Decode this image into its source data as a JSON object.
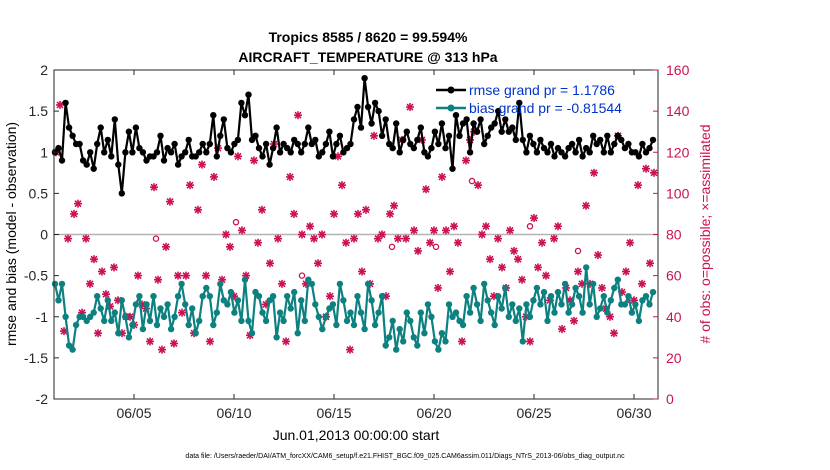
{
  "chart_data": {
    "type": "line",
    "title_line1": "Tropics 8585 / 8620 = 99.594%",
    "title_line2": "AIRCRAFT_TEMPERATURE @ 313 hPa",
    "xlabel": "Jun.01,2013 00:00:00 start",
    "ylabel_left": "rmse and bias (model - observation)",
    "ylabel_right": "# of obs: o=possible; ×=assimilated",
    "footnote": "data file: /Users/raeder/DAI/ATM_forcXX/CAM6_setup/f.e21.FHIST_BGC.f09_025.CAM6assim.011/Diags_NTrS_2013-06/obs_diag_output.nc",
    "xlim": [
      1.0,
      31.2
    ],
    "ylim_left": [
      -2,
      2
    ],
    "ylim_right": [
      0,
      160
    ],
    "xtick_values": [
      5,
      10,
      15,
      20,
      25,
      30
    ],
    "xtick_labels": [
      "06/05",
      "06/10",
      "06/15",
      "06/20",
      "06/25",
      "06/30"
    ],
    "ytick_left": [
      "2",
      "1.5",
      "1",
      "0.5",
      "0",
      "-0.5",
      "-1",
      "-1.5",
      "-2"
    ],
    "ytick_left_values": [
      2,
      1.5,
      1,
      0.5,
      0,
      -0.5,
      -1,
      -1.5,
      -2
    ],
    "ytick_right": [
      "160",
      "140",
      "120",
      "100",
      "80",
      "60",
      "40",
      "20",
      "0"
    ],
    "ytick_right_values": [
      160,
      140,
      120,
      100,
      80,
      60,
      40,
      20,
      0
    ],
    "zero_line": 0,
    "colors": {
      "rmse": "#000000",
      "bias": "#0d8080",
      "obs": "#cc1155",
      "legend_text": "#0033cc",
      "zero_line": "#b3b3b3"
    },
    "series": [
      {
        "name": "rmse grand pr = 1.1786",
        "values": [
          1.0,
          1.05,
          0.9,
          1.6,
          1.3,
          1.2,
          1.1,
          1.1,
          0.9,
          0.85,
          1.0,
          0.8,
          1.1,
          1.3,
          1.0,
          1.15,
          0.95,
          1.4,
          0.85,
          0.5,
          1.0,
          1.25,
          1.0,
          1.3,
          1.05,
          1.0,
          0.9,
          0.95,
          0.95,
          1.0,
          1.2,
          0.9,
          1.05,
          1.0,
          1.1,
          0.85,
          0.95,
          1.0,
          1.15,
          0.95,
          0.95,
          1.0,
          1.1,
          1.0,
          1.1,
          1.45,
          0.95,
          1.2,
          1.4,
          1.05,
          1.0,
          1.1,
          1.15,
          1.6,
          1.45,
          1.7,
          1.15,
          1.2,
          1.05,
          0.95,
          1.1,
          0.85,
          1.05,
          1.3,
          1.0,
          1.1,
          1.05,
          1.0,
          1.15,
          1.1,
          1.0,
          1.1,
          1.3,
          1.1,
          1.15,
          0.95,
          1.0,
          1.1,
          1.25,
          0.95,
          1.1,
          1.2,
          1.0,
          1.05,
          1.1,
          1.4,
          1.55,
          1.3,
          1.9,
          1.55,
          1.35,
          1.6,
          1.5,
          1.2,
          1.4,
          1.1,
          1.05,
          1.35,
          1.0,
          1.15,
          1.25,
          1.1,
          1.05,
          1.15,
          1.3,
          1.0,
          0.95,
          1.05,
          1.25,
          1.1,
          1.35,
          1.05,
          1.2,
          0.8,
          1.45,
          1.2,
          1.35,
          1.4,
          1.0,
          1.35,
          1.25,
          1.4,
          1.1,
          1.2,
          1.3,
          1.35,
          1.5,
          1.25,
          1.4,
          1.25,
          1.3,
          1.15,
          1.6,
          1.15,
          1.0,
          1.2,
          1.1,
          1.0,
          1.15,
          1.05,
          1.0,
          1.1,
          0.95,
          1.05,
          1.0,
          0.95,
          1.05,
          1.1,
          1.0,
          1.15,
          0.95,
          1.05,
          1.0,
          1.2,
          1.1,
          1.15,
          1.0,
          1.2,
          1.0,
          1.1,
          1.2,
          1.15,
          1.05,
          1.1,
          1.0,
          1.0,
          0.95,
          1.1,
          1.0,
          1.05,
          1.15
        ]
      },
      {
        "name": "bias grand pr = -0.81544",
        "values": [
          -0.6,
          -0.8,
          -0.6,
          -1.0,
          -1.35,
          -1.4,
          -1.1,
          -1.0,
          -1.0,
          -1.05,
          -1.0,
          -0.95,
          -0.75,
          -0.9,
          -1.05,
          -0.8,
          -1.05,
          -0.95,
          -1.2,
          -0.8,
          -1.0,
          -1.25,
          -1.1,
          -0.85,
          -0.75,
          -1.15,
          -0.85,
          -1.05,
          -0.75,
          -1.1,
          -0.9,
          -1.0,
          -0.85,
          -1.15,
          -1.0,
          -0.75,
          -0.6,
          -0.85,
          -1.1,
          -0.9,
          -1.2,
          -1.05,
          -0.75,
          -0.65,
          -0.75,
          -1.1,
          -0.95,
          -0.6,
          -0.8,
          -0.85,
          -0.7,
          -0.95,
          -0.8,
          -1.05,
          -0.55,
          -1.05,
          -1.2,
          -0.7,
          -0.75,
          -0.95,
          -1.05,
          -0.8,
          -0.75,
          -1.25,
          -0.95,
          -1.05,
          -0.75,
          -0.9,
          -0.7,
          -1.2,
          -0.8,
          -1.05,
          -0.55,
          -0.6,
          -0.85,
          -1.0,
          -1.15,
          -1.0,
          -0.9,
          -0.85,
          -1.1,
          -0.6,
          -0.8,
          -1.05,
          -0.95,
          -1.1,
          -0.75,
          -0.95,
          -1.15,
          -0.6,
          -0.8,
          -1.1,
          -0.95,
          -0.75,
          -1.35,
          -1.25,
          -1.05,
          -1.4,
          -1.15,
          -1.3,
          -0.95,
          -1.05,
          -1.25,
          -1.35,
          -0.95,
          -1.2,
          -0.85,
          -1.0,
          -1.3,
          -1.4,
          -1.2,
          -1.3,
          -0.85,
          -1.0,
          -0.95,
          -1.05,
          -1.1,
          -0.75,
          -0.95,
          -0.65,
          -0.85,
          -1.05,
          -0.6,
          -0.8,
          -0.95,
          -1.1,
          -0.75,
          -0.9,
          -0.65,
          -1.0,
          -0.85,
          -1.05,
          -0.9,
          -1.3,
          -0.85,
          -1.0,
          -0.8,
          -0.65,
          -0.85,
          -0.7,
          -1.05,
          -0.75,
          -0.95,
          -0.7,
          -0.85,
          -0.6,
          -0.95,
          -0.85,
          -0.65,
          -0.75,
          -0.95,
          -0.4,
          -0.85,
          -0.6,
          -1.0,
          -0.9,
          -0.75,
          -0.95,
          -0.8,
          -0.65,
          -0.55,
          -0.85,
          -0.85,
          -0.75,
          -0.95,
          -0.85,
          -1.05,
          -0.8,
          -0.75,
          -0.85,
          -0.7
        ]
      },
      {
        "name": "# of obs",
        "points": [
          [
            1.1,
            120
          ],
          [
            1.3,
            143
          ],
          [
            1.5,
            33
          ],
          [
            1.7,
            78
          ],
          [
            2.0,
            90
          ],
          [
            2.2,
            95
          ],
          [
            2.4,
            42
          ],
          [
            2.6,
            78
          ],
          [
            2.8,
            56
          ],
          [
            3.0,
            68
          ],
          [
            3.2,
            32
          ],
          [
            3.4,
            62
          ],
          [
            3.6,
            51
          ],
          [
            3.8,
            45
          ],
          [
            4.0,
            64
          ],
          [
            4.2,
            48
          ],
          [
            4.4,
            32
          ],
          [
            4.6,
            40
          ],
          [
            4.8,
            40
          ],
          [
            5.0,
            36
          ],
          [
            5.2,
            60
          ],
          [
            5.4,
            46
          ],
          [
            5.6,
            44
          ],
          [
            5.8,
            28
          ],
          [
            6.0,
            103
          ],
          [
            6.2,
            58
          ],
          [
            6.4,
            24
          ],
          [
            6.6,
            74
          ],
          [
            6.8,
            96
          ],
          [
            7.0,
            27
          ],
          [
            7.2,
            60
          ],
          [
            7.4,
            42
          ],
          [
            7.6,
            60
          ],
          [
            7.8,
            104
          ],
          [
            8.0,
            32
          ],
          [
            8.2,
            92
          ],
          [
            8.4,
            114
          ],
          [
            8.6,
            60
          ],
          [
            8.8,
            28
          ],
          [
            9.0,
            108
          ],
          [
            9.2,
            122
          ],
          [
            9.4,
            58
          ],
          [
            9.6,
            80
          ],
          [
            9.8,
            74
          ],
          [
            10.0,
            50
          ],
          [
            10.2,
            118
          ],
          [
            10.4,
            82
          ],
          [
            10.6,
            60
          ],
          [
            10.8,
            31
          ],
          [
            11.0,
            116
          ],
          [
            11.2,
            76
          ],
          [
            11.4,
            92
          ],
          [
            11.6,
            46
          ],
          [
            11.8,
            66
          ],
          [
            12.0,
            124
          ],
          [
            12.2,
            78
          ],
          [
            12.4,
            56
          ],
          [
            12.6,
            28
          ],
          [
            12.8,
            108
          ],
          [
            13.0,
            90
          ],
          [
            13.2,
            138
          ],
          [
            13.4,
            80
          ],
          [
            13.6,
            56
          ],
          [
            13.8,
            84
          ],
          [
            14.0,
            78
          ],
          [
            14.2,
            66
          ],
          [
            14.4,
            80
          ],
          [
            14.6,
            40
          ],
          [
            14.8,
            50
          ],
          [
            15.0,
            90
          ],
          [
            15.2,
            118
          ],
          [
            15.4,
            104
          ],
          [
            15.6,
            76
          ],
          [
            15.8,
            24
          ],
          [
            16.0,
            78
          ],
          [
            16.2,
            90
          ],
          [
            16.4,
            62
          ],
          [
            16.6,
            92
          ],
          [
            16.8,
            56
          ],
          [
            17.0,
            128
          ],
          [
            17.2,
            78
          ],
          [
            17.4,
            80
          ],
          [
            17.6,
            50
          ],
          [
            17.8,
            90
          ],
          [
            18.0,
            94
          ],
          [
            18.2,
            78
          ],
          [
            18.4,
            126
          ],
          [
            18.6,
            78
          ],
          [
            18.8,
            142
          ],
          [
            19.0,
            82
          ],
          [
            19.2,
            72
          ],
          [
            19.4,
            126
          ],
          [
            19.6,
            102
          ],
          [
            19.8,
            76
          ],
          [
            20.0,
            82
          ],
          [
            20.2,
            54
          ],
          [
            20.4,
            108
          ],
          [
            20.6,
            82
          ],
          [
            20.8,
            62
          ],
          [
            21.0,
            84
          ],
          [
            21.2,
            76
          ],
          [
            21.4,
            28
          ],
          [
            21.6,
            116
          ],
          [
            21.8,
            126
          ],
          [
            22.0,
            130
          ],
          [
            22.2,
            104
          ],
          [
            22.4,
            80
          ],
          [
            22.6,
            84
          ],
          [
            22.8,
            68
          ],
          [
            23.0,
            50
          ],
          [
            23.2,
            78
          ],
          [
            23.4,
            64
          ],
          [
            23.6,
            54
          ],
          [
            23.8,
            82
          ],
          [
            24.0,
            72
          ],
          [
            24.2,
            68
          ],
          [
            24.4,
            58
          ],
          [
            24.6,
            40
          ],
          [
            24.8,
            28
          ],
          [
            25.0,
            88
          ],
          [
            25.2,
            64
          ],
          [
            25.4,
            76
          ],
          [
            25.6,
            60
          ],
          [
            25.8,
            48
          ],
          [
            26.0,
            78
          ],
          [
            26.2,
            84
          ],
          [
            26.4,
            34
          ],
          [
            26.6,
            54
          ],
          [
            26.8,
            48
          ],
          [
            27.0,
            38
          ],
          [
            27.2,
            62
          ],
          [
            27.4,
            56
          ],
          [
            27.6,
            94
          ],
          [
            27.8,
            56
          ],
          [
            28.0,
            110
          ],
          [
            28.2,
            70
          ],
          [
            28.4,
            54
          ],
          [
            28.6,
            44
          ],
          [
            28.8,
            40
          ],
          [
            29.0,
            32
          ],
          [
            29.2,
            128
          ],
          [
            29.4,
            52
          ],
          [
            29.6,
            62
          ],
          [
            29.8,
            76
          ],
          [
            30.0,
            48
          ],
          [
            30.2,
            104
          ],
          [
            30.4,
            56
          ],
          [
            30.6,
            112
          ],
          [
            30.8,
            66
          ],
          [
            31.0,
            110
          ]
        ]
      }
    ],
    "obs_possible_points": [
      [
        6.1,
        78
      ],
      [
        10.1,
        86
      ],
      [
        13.4,
        60
      ],
      [
        17.9,
        74
      ],
      [
        20.1,
        74
      ],
      [
        21.9,
        106
      ],
      [
        24.8,
        84
      ],
      [
        27.2,
        72
      ],
      [
        29.8,
        48
      ]
    ]
  }
}
